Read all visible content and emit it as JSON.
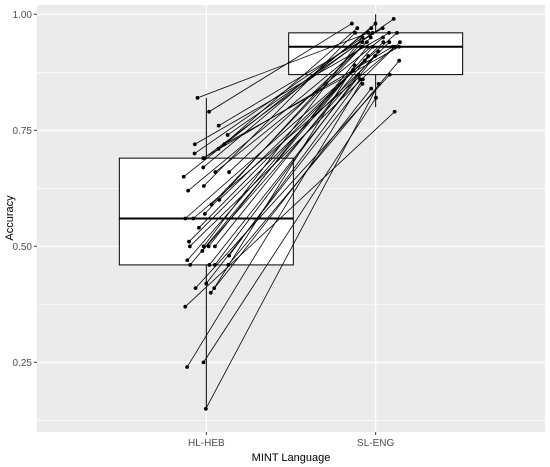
{
  "chart_data": {
    "type": "boxplot",
    "title": "",
    "xlabel": "MINT Language",
    "ylabel": "Accuracy",
    "categories": [
      "HL-HEB",
      "SL-ENG"
    ],
    "ylim": [
      0.1,
      1.02
    ],
    "yticks": [
      0.25,
      0.5,
      0.75,
      1.0
    ],
    "ytick_labels": [
      "0.25",
      "0.50",
      "0.75",
      "1.00"
    ],
    "grid": true,
    "legend": "none",
    "colors": {
      "panel": "#ebebeb",
      "grid": "#ffffff",
      "box_fill": "#ffffff",
      "line": "#000000"
    },
    "boxes": [
      {
        "category": "HL-HEB",
        "whisker_low": 0.15,
        "q1": 0.46,
        "median": 0.56,
        "q3": 0.69,
        "whisker_high": 0.82
      },
      {
        "category": "SL-ENG",
        "whisker_low": 0.8,
        "q1": 0.87,
        "median": 0.93,
        "q3": 0.96,
        "whisker_high": 1.0
      }
    ],
    "pairs": [
      [
        0.15,
        0.85
      ],
      [
        0.24,
        0.86
      ],
      [
        0.25,
        0.82
      ],
      [
        0.37,
        0.79
      ],
      [
        0.4,
        0.84
      ],
      [
        0.41,
        0.87
      ],
      [
        0.41,
        0.89
      ],
      [
        0.42,
        0.85
      ],
      [
        0.46,
        0.87
      ],
      [
        0.46,
        0.91
      ],
      [
        0.46,
        0.88
      ],
      [
        0.46,
        0.9
      ],
      [
        0.47,
        0.93
      ],
      [
        0.48,
        0.86
      ],
      [
        0.49,
        0.92
      ],
      [
        0.5,
        0.9
      ],
      [
        0.5,
        0.94
      ],
      [
        0.5,
        0.95
      ],
      [
        0.5,
        0.93
      ],
      [
        0.51,
        0.94
      ],
      [
        0.54,
        0.91
      ],
      [
        0.56,
        0.96
      ],
      [
        0.56,
        0.93
      ],
      [
        0.57,
        0.94
      ],
      [
        0.59,
        0.95
      ],
      [
        0.6,
        0.94
      ],
      [
        0.62,
        0.93
      ],
      [
        0.63,
        0.96
      ],
      [
        0.65,
        0.97
      ],
      [
        0.66,
        0.95
      ],
      [
        0.66,
        0.94
      ],
      [
        0.67,
        0.98
      ],
      [
        0.69,
        0.93
      ],
      [
        0.69,
        0.96
      ],
      [
        0.7,
        0.95
      ],
      [
        0.71,
        0.97
      ],
      [
        0.72,
        0.96
      ],
      [
        0.72,
        0.93
      ],
      [
        0.74,
        0.99
      ],
      [
        0.76,
        0.97
      ],
      [
        0.79,
        0.98
      ],
      [
        0.82,
        0.96
      ]
    ]
  }
}
